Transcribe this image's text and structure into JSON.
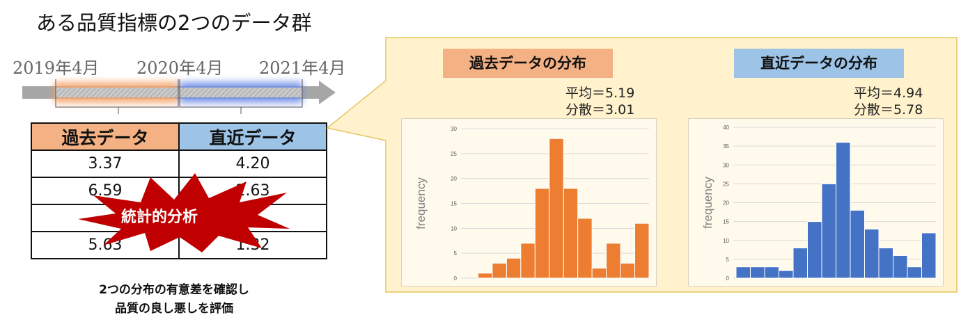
{
  "title": "ある品質指標の2つのデータ群",
  "timeline": {
    "dates": [
      "2019年4月",
      "2020年4月",
      "2021年4月"
    ]
  },
  "table": {
    "headers": [
      "過去データ",
      "直近データ"
    ],
    "rows": [
      [
        "3.37",
        "4.20"
      ],
      [
        "6.59",
        "2.63"
      ],
      [
        "…",
        "…"
      ],
      [
        "5.63",
        "1.32"
      ]
    ]
  },
  "burst_label": "統計的分析",
  "bottom_note": {
    "line1": "2つの分布の有意差を確認し",
    "line2": "品質の良し悪しを評価"
  },
  "colors": {
    "past": "#f4b183",
    "recent": "#9dc3e6",
    "past_bar": "#ed7d31",
    "recent_bar": "#4472c4",
    "callout_bg": "#fff2cc",
    "burst": "#c00000"
  },
  "past_panel": {
    "title": "過去データの分布",
    "mean_label": "平均＝5.19",
    "var_label": "分散＝3.01"
  },
  "recent_panel": {
    "title": "直近データの分布",
    "mean_label": "平均＝4.94",
    "var_label": "分散＝5.78"
  },
  "chart_data": [
    {
      "type": "bar",
      "ylabel": "frequency",
      "ylim": [
        0,
        30
      ],
      "yticks": [
        "0",
        "5",
        "10",
        "15",
        "20",
        "25",
        "30"
      ],
      "values": [
        0,
        1,
        3,
        4,
        7,
        18,
        28,
        18,
        12,
        2,
        7,
        3,
        11
      ],
      "grid": true
    },
    {
      "type": "bar",
      "ylabel": "frequency",
      "ylim": [
        0,
        40
      ],
      "yticks": [
        "0",
        "5",
        "10",
        "15",
        "20",
        "25",
        "30",
        "35",
        "40"
      ],
      "values": [
        3,
        3,
        3,
        2,
        8,
        15,
        25,
        36,
        18,
        13,
        8,
        6,
        3,
        12
      ],
      "grid": true
    }
  ]
}
